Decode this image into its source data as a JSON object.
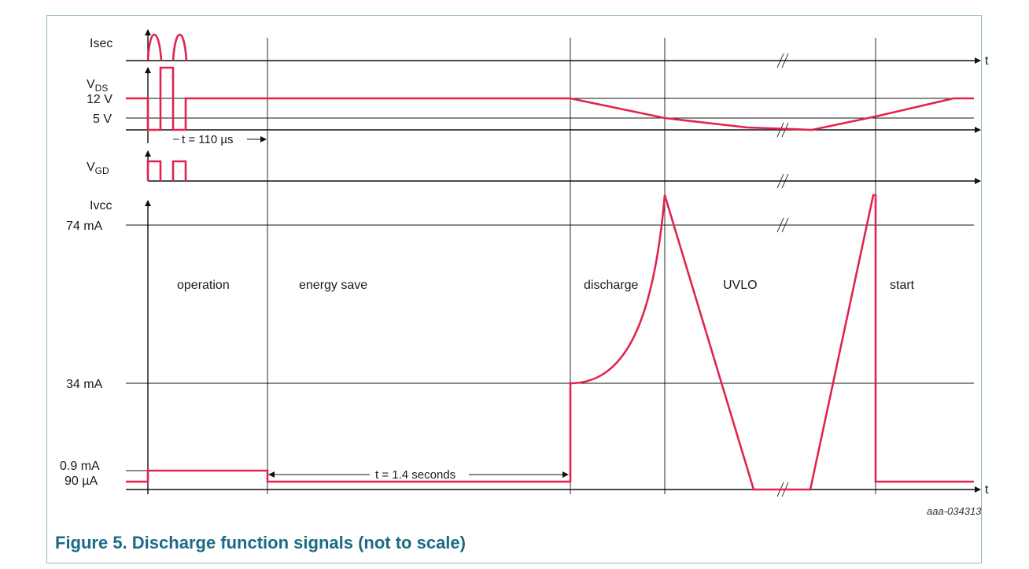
{
  "signals": {
    "isec": "Isec",
    "vds_main": "V",
    "vds_sub": "DS",
    "vgd_main": "V",
    "vgd_sub": "GD",
    "ivcc": "Ivcc"
  },
  "levels": {
    "v12": "12 V",
    "v5": "5 V",
    "ma74": "74 mA",
    "ma34": "34 mA",
    "ma09": "0.9 mA",
    "ua90": "90 µA"
  },
  "axis": {
    "t_top": "t",
    "t_bottom": "t"
  },
  "annotations": {
    "t110": "t = 110 µs",
    "t14": "t = 1.4 seconds"
  },
  "regions": {
    "operation": "operation",
    "energy_save": "energy save",
    "discharge": "discharge",
    "uvlo": "UVLO",
    "start": "start"
  },
  "code": "aaa-034313",
  "caption": "Figure 5.  Discharge function signals (not to scale)",
  "colors": {
    "signal": "#e0244f",
    "caption": "#1b6b87",
    "frame": "#8fb6c6"
  }
}
